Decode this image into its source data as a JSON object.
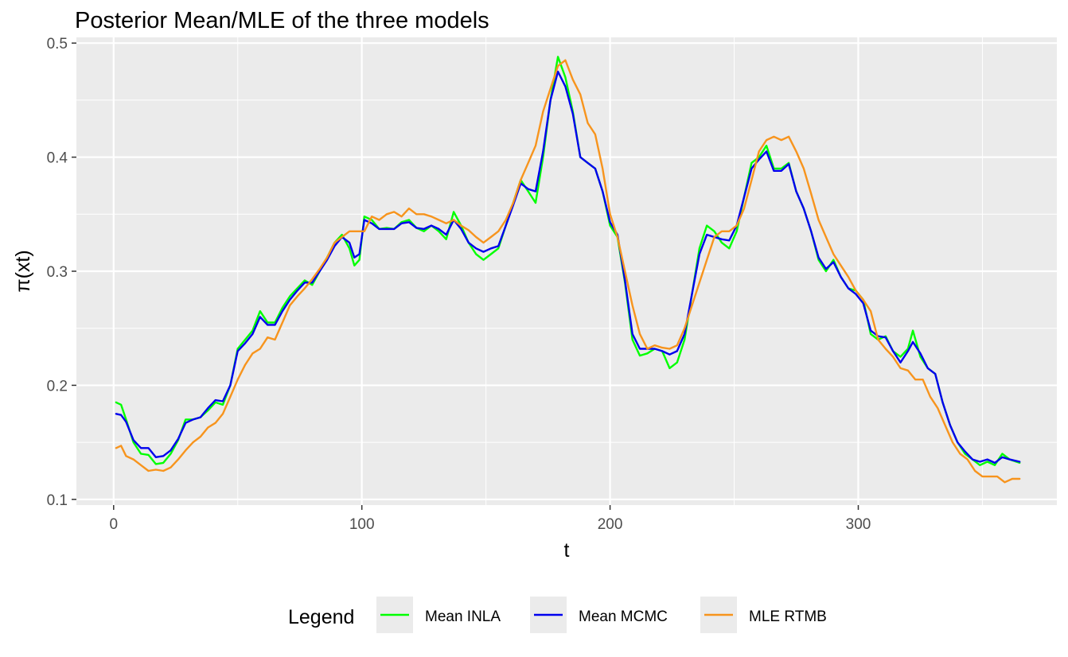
{
  "chart_data": {
    "type": "line",
    "title": "Posterior Mean/MLE of the three models",
    "xlabel": "t",
    "ylabel": "π(xt)",
    "xlim": [
      -15,
      380
    ],
    "ylim": [
      0.095,
      0.505
    ],
    "x_ticks": [
      0,
      100,
      200,
      300
    ],
    "x_tick_labels": [
      "0",
      "100",
      "200",
      "300"
    ],
    "y_ticks": [
      0.1,
      0.2,
      0.3,
      0.4,
      0.5
    ],
    "y_tick_labels": [
      "0.1",
      "0.2",
      "0.3",
      "0.4",
      "0.5"
    ],
    "grid": true,
    "legend_title": "Legend",
    "legend_position": "bottom",
    "series": [
      {
        "name": "Mean INLA",
        "color": "#00FF00",
        "x": [
          1,
          3,
          5,
          8,
          11,
          14,
          17,
          20,
          23,
          26,
          29,
          32,
          35,
          38,
          41,
          44,
          47,
          50,
          53,
          56,
          59,
          62,
          65,
          68,
          71,
          74,
          77,
          80,
          83,
          86,
          89,
          92,
          95,
          97,
          99,
          101,
          104,
          107,
          110,
          113,
          116,
          119,
          122,
          125,
          128,
          131,
          134,
          137,
          140,
          143,
          146,
          149,
          152,
          155,
          158,
          161,
          164,
          167,
          170,
          173,
          176,
          179,
          182,
          185,
          188,
          191,
          194,
          197,
          200,
          203,
          206,
          209,
          212,
          215,
          218,
          221,
          224,
          227,
          230,
          233,
          236,
          239,
          242,
          245,
          248,
          251,
          254,
          257,
          260,
          263,
          266,
          269,
          272,
          275,
          278,
          281,
          284,
          287,
          290,
          293,
          296,
          299,
          302,
          305,
          308,
          311,
          314,
          317,
          320,
          322,
          325,
          328,
          331,
          334,
          337,
          340,
          343,
          346,
          349,
          352,
          355,
          358,
          361,
          365
        ],
        "values": [
          0.185,
          0.183,
          0.17,
          0.15,
          0.14,
          0.139,
          0.131,
          0.132,
          0.14,
          0.152,
          0.17,
          0.17,
          0.172,
          0.178,
          0.185,
          0.183,
          0.2,
          0.232,
          0.24,
          0.248,
          0.265,
          0.255,
          0.255,
          0.268,
          0.278,
          0.285,
          0.292,
          0.288,
          0.3,
          0.312,
          0.325,
          0.332,
          0.32,
          0.305,
          0.31,
          0.348,
          0.345,
          0.337,
          0.338,
          0.337,
          0.343,
          0.345,
          0.338,
          0.335,
          0.34,
          0.335,
          0.328,
          0.352,
          0.34,
          0.325,
          0.315,
          0.31,
          0.315,
          0.32,
          0.34,
          0.36,
          0.38,
          0.37,
          0.36,
          0.4,
          0.45,
          0.488,
          0.47,
          0.44,
          0.4,
          0.395,
          0.39,
          0.37,
          0.34,
          0.33,
          0.29,
          0.24,
          0.226,
          0.228,
          0.232,
          0.23,
          0.215,
          0.22,
          0.24,
          0.28,
          0.32,
          0.34,
          0.335,
          0.325,
          0.32,
          0.335,
          0.365,
          0.395,
          0.4,
          0.41,
          0.39,
          0.39,
          0.395,
          0.37,
          0.355,
          0.335,
          0.31,
          0.3,
          0.31,
          0.295,
          0.285,
          0.283,
          0.275,
          0.245,
          0.24,
          0.243,
          0.23,
          0.225,
          0.232,
          0.248,
          0.225,
          0.215,
          0.21,
          0.185,
          0.165,
          0.15,
          0.14,
          0.135,
          0.13,
          0.133,
          0.13,
          0.14,
          0.135,
          0.132
        ]
      },
      {
        "name": "Mean MCMC",
        "color": "#0000EE",
        "x": [
          1,
          3,
          5,
          8,
          11,
          14,
          17,
          20,
          23,
          26,
          29,
          32,
          35,
          38,
          41,
          44,
          47,
          50,
          53,
          56,
          59,
          62,
          65,
          68,
          71,
          74,
          77,
          80,
          83,
          86,
          89,
          92,
          95,
          97,
          99,
          101,
          104,
          107,
          110,
          113,
          116,
          119,
          122,
          125,
          128,
          131,
          134,
          137,
          140,
          143,
          146,
          149,
          152,
          155,
          158,
          161,
          164,
          167,
          170,
          173,
          176,
          179,
          182,
          185,
          188,
          191,
          194,
          197,
          200,
          203,
          206,
          209,
          212,
          215,
          218,
          221,
          224,
          227,
          230,
          233,
          236,
          239,
          242,
          245,
          248,
          251,
          254,
          257,
          260,
          263,
          266,
          269,
          272,
          275,
          278,
          281,
          284,
          287,
          290,
          293,
          296,
          299,
          302,
          305,
          308,
          311,
          314,
          317,
          320,
          322,
          325,
          328,
          331,
          334,
          337,
          340,
          343,
          346,
          349,
          352,
          355,
          358,
          361,
          365
        ],
        "values": [
          0.175,
          0.174,
          0.168,
          0.152,
          0.145,
          0.145,
          0.137,
          0.138,
          0.143,
          0.153,
          0.167,
          0.17,
          0.172,
          0.18,
          0.187,
          0.186,
          0.2,
          0.23,
          0.237,
          0.245,
          0.26,
          0.253,
          0.253,
          0.265,
          0.275,
          0.283,
          0.29,
          0.29,
          0.3,
          0.31,
          0.322,
          0.33,
          0.325,
          0.312,
          0.315,
          0.345,
          0.342,
          0.337,
          0.337,
          0.337,
          0.342,
          0.343,
          0.338,
          0.337,
          0.34,
          0.337,
          0.332,
          0.345,
          0.337,
          0.325,
          0.32,
          0.317,
          0.32,
          0.322,
          0.34,
          0.358,
          0.377,
          0.372,
          0.37,
          0.405,
          0.45,
          0.475,
          0.462,
          0.438,
          0.4,
          0.395,
          0.39,
          0.37,
          0.343,
          0.332,
          0.292,
          0.245,
          0.232,
          0.232,
          0.232,
          0.23,
          0.227,
          0.23,
          0.245,
          0.28,
          0.315,
          0.332,
          0.33,
          0.328,
          0.327,
          0.34,
          0.365,
          0.39,
          0.398,
          0.405,
          0.388,
          0.388,
          0.394,
          0.37,
          0.355,
          0.335,
          0.312,
          0.302,
          0.308,
          0.295,
          0.285,
          0.28,
          0.272,
          0.248,
          0.243,
          0.242,
          0.23,
          0.22,
          0.23,
          0.238,
          0.228,
          0.215,
          0.21,
          0.185,
          0.165,
          0.15,
          0.142,
          0.135,
          0.133,
          0.135,
          0.132,
          0.137,
          0.135,
          0.133
        ]
      },
      {
        "name": "MLE RTMB",
        "color": "#F7941D",
        "x": [
          1,
          3,
          5,
          8,
          11,
          14,
          17,
          20,
          23,
          26,
          29,
          32,
          35,
          38,
          41,
          44,
          47,
          50,
          53,
          56,
          59,
          62,
          65,
          68,
          71,
          74,
          77,
          80,
          83,
          86,
          89,
          92,
          95,
          98,
          101,
          104,
          107,
          110,
          113,
          116,
          119,
          122,
          125,
          128,
          131,
          134,
          137,
          140,
          143,
          146,
          149,
          152,
          155,
          158,
          161,
          164,
          167,
          170,
          173,
          176,
          179,
          182,
          185,
          188,
          191,
          194,
          197,
          200,
          203,
          206,
          209,
          212,
          215,
          218,
          221,
          224,
          227,
          230,
          233,
          236,
          239,
          242,
          245,
          248,
          251,
          254,
          257,
          260,
          263,
          266,
          269,
          272,
          275,
          278,
          281,
          284,
          287,
          290,
          293,
          296,
          299,
          302,
          305,
          308,
          311,
          314,
          317,
          320,
          323,
          326,
          329,
          332,
          335,
          338,
          341,
          344,
          347,
          350,
          353,
          356,
          359,
          362,
          365
        ],
        "values": [
          0.145,
          0.147,
          0.138,
          0.135,
          0.13,
          0.125,
          0.126,
          0.125,
          0.128,
          0.135,
          0.143,
          0.15,
          0.155,
          0.163,
          0.167,
          0.175,
          0.19,
          0.205,
          0.218,
          0.228,
          0.232,
          0.242,
          0.24,
          0.255,
          0.27,
          0.278,
          0.285,
          0.293,
          0.302,
          0.312,
          0.325,
          0.33,
          0.335,
          0.335,
          0.335,
          0.348,
          0.345,
          0.35,
          0.352,
          0.348,
          0.355,
          0.35,
          0.35,
          0.348,
          0.345,
          0.342,
          0.345,
          0.34,
          0.336,
          0.33,
          0.325,
          0.33,
          0.335,
          0.345,
          0.36,
          0.38,
          0.395,
          0.41,
          0.44,
          0.46,
          0.48,
          0.485,
          0.468,
          0.455,
          0.43,
          0.42,
          0.39,
          0.35,
          0.33,
          0.3,
          0.27,
          0.245,
          0.232,
          0.235,
          0.233,
          0.232,
          0.235,
          0.25,
          0.27,
          0.29,
          0.31,
          0.33,
          0.335,
          0.335,
          0.34,
          0.355,
          0.38,
          0.405,
          0.415,
          0.418,
          0.415,
          0.418,
          0.405,
          0.39,
          0.368,
          0.345,
          0.33,
          0.315,
          0.305,
          0.295,
          0.283,
          0.275,
          0.265,
          0.24,
          0.232,
          0.225,
          0.215,
          0.213,
          0.205,
          0.205,
          0.19,
          0.18,
          0.165,
          0.15,
          0.14,
          0.135,
          0.125,
          0.12,
          0.12,
          0.12,
          0.115,
          0.118,
          0.118
        ]
      }
    ]
  }
}
